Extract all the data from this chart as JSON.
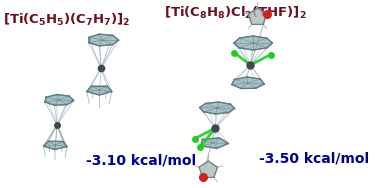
{
  "bg_color": "#ffffff",
  "formula_color": "#6b0e1e",
  "energy_color": "#00008b",
  "left_energy": "-3.10 kcal/mol",
  "right_energy": "-3.50 kcal/mol",
  "ring_color": "#8aabb0",
  "ring_edge": "#5a7a80",
  "metal_color": "#3a4a50",
  "cl_color": "#22cc22",
  "thf_color": "#cc2222",
  "thf_c_color": "#aabbbb",
  "bond_color": "#7a9aa0",
  "font_size_formula": 9.5,
  "font_size_energy": 10
}
